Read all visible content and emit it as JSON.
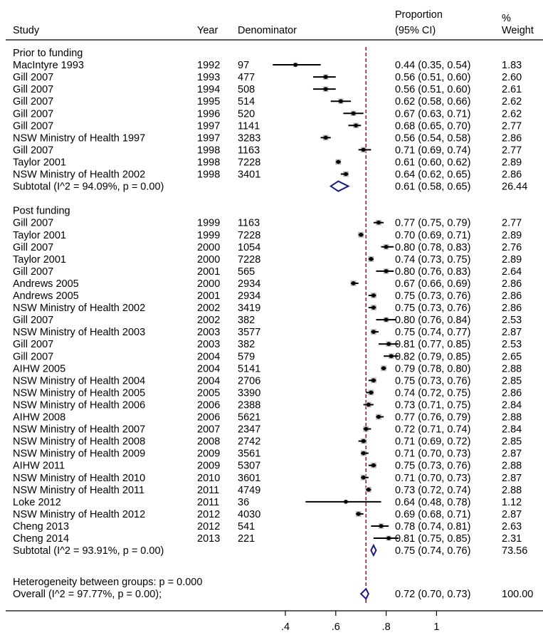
{
  "chart_data": {
    "type": "forest",
    "headers": {
      "study": "Study",
      "year": "Year",
      "denominator": "Denominator",
      "proportion_line1": "Proportion",
      "proportion_line2": "(95% CI)",
      "weight_line1": "%",
      "weight_line2": "Weight"
    },
    "groups": [
      {
        "label": "Prior to funding",
        "rows": [
          {
            "study": "MacIntyre 1993",
            "year": "1992",
            "denominator": "97",
            "prop": 0.44,
            "lo": 0.35,
            "hi": 0.54,
            "ci_text": "0.44 (0.35, 0.54)",
            "weight": 1.83,
            "weight_text": "1.83"
          },
          {
            "study": "Gill 2007",
            "year": "1993",
            "denominator": "477",
            "prop": 0.56,
            "lo": 0.51,
            "hi": 0.6,
            "ci_text": "0.56 (0.51, 0.60)",
            "weight": 2.6,
            "weight_text": "2.60"
          },
          {
            "study": "Gill 2007",
            "year": "1994",
            "denominator": "508",
            "prop": 0.56,
            "lo": 0.51,
            "hi": 0.6,
            "ci_text": "0.56 (0.51, 0.60)",
            "weight": 2.61,
            "weight_text": "2.61"
          },
          {
            "study": "Gill 2007",
            "year": "1995",
            "denominator": "514",
            "prop": 0.62,
            "lo": 0.58,
            "hi": 0.66,
            "ci_text": "0.62 (0.58, 0.66)",
            "weight": 2.62,
            "weight_text": "2.62"
          },
          {
            "study": "Gill 2007",
            "year": "1996",
            "denominator": "520",
            "prop": 0.67,
            "lo": 0.63,
            "hi": 0.71,
            "ci_text": "0.67 (0.63, 0.71)",
            "weight": 2.62,
            "weight_text": "2.62"
          },
          {
            "study": "Gill 2007",
            "year": "1997",
            "denominator": "1141",
            "prop": 0.68,
            "lo": 0.65,
            "hi": 0.7,
            "ci_text": "0.68 (0.65, 0.70)",
            "weight": 2.77,
            "weight_text": "2.77"
          },
          {
            "study": "NSW Ministry of Health 1997",
            "year": "1997",
            "denominator": "3283",
            "prop": 0.56,
            "lo": 0.54,
            "hi": 0.58,
            "ci_text": "0.56 (0.54, 0.58)",
            "weight": 2.86,
            "weight_text": "2.86"
          },
          {
            "study": "Gill 2007",
            "year": "1998",
            "denominator": "1163",
            "prop": 0.71,
            "lo": 0.69,
            "hi": 0.74,
            "ci_text": "0.71 (0.69, 0.74)",
            "weight": 2.77,
            "weight_text": "2.77"
          },
          {
            "study": "Taylor 2001",
            "year": "1998",
            "denominator": "7228",
            "prop": 0.61,
            "lo": 0.6,
            "hi": 0.62,
            "ci_text": "0.61 (0.60, 0.62)",
            "weight": 2.89,
            "weight_text": "2.89"
          },
          {
            "study": "NSW Ministry of Health 2002",
            "year": "1998",
            "denominator": "3401",
            "prop": 0.64,
            "lo": 0.62,
            "hi": 0.65,
            "ci_text": "0.64 (0.62, 0.65)",
            "weight": 2.86,
            "weight_text": "2.86"
          }
        ],
        "subtotal": {
          "label": "Subtotal  (I^2 = 94.09%, p = 0.00)",
          "prop": 0.61,
          "lo": 0.58,
          "hi": 0.65,
          "ci_text": "0.61 (0.58, 0.65)",
          "weight_text": "26.44"
        }
      },
      {
        "label": "Post funding",
        "rows": [
          {
            "study": "Gill 2007",
            "year": "1999",
            "denominator": "1163",
            "prop": 0.77,
            "lo": 0.75,
            "hi": 0.79,
            "ci_text": "0.77 (0.75, 0.79)",
            "weight": 2.77,
            "weight_text": "2.77"
          },
          {
            "study": "Taylor 2001",
            "year": "1999",
            "denominator": "7228",
            "prop": 0.7,
            "lo": 0.69,
            "hi": 0.71,
            "ci_text": "0.70 (0.69, 0.71)",
            "weight": 2.89,
            "weight_text": "2.89"
          },
          {
            "study": "Gill 2007",
            "year": "2000",
            "denominator": "1054",
            "prop": 0.8,
            "lo": 0.78,
            "hi": 0.83,
            "ci_text": "0.80 (0.78, 0.83)",
            "weight": 2.76,
            "weight_text": "2.76"
          },
          {
            "study": "Taylor 2001",
            "year": "2000",
            "denominator": "7228",
            "prop": 0.74,
            "lo": 0.73,
            "hi": 0.75,
            "ci_text": "0.74 (0.73, 0.75)",
            "weight": 2.89,
            "weight_text": "2.89"
          },
          {
            "study": "Gill 2007",
            "year": "2001",
            "denominator": "565",
            "prop": 0.8,
            "lo": 0.76,
            "hi": 0.83,
            "ci_text": "0.80 (0.76, 0.83)",
            "weight": 2.64,
            "weight_text": "2.64"
          },
          {
            "study": "Andrews 2005",
            "year": "2000",
            "denominator": "2934",
            "prop": 0.67,
            "lo": 0.66,
            "hi": 0.69,
            "ci_text": "0.67 (0.66, 0.69)",
            "weight": 2.86,
            "weight_text": "2.86"
          },
          {
            "study": "Andrews 2005",
            "year": "2001",
            "denominator": "2934",
            "prop": 0.75,
            "lo": 0.73,
            "hi": 0.76,
            "ci_text": "0.75 (0.73, 0.76)",
            "weight": 2.86,
            "weight_text": "2.86"
          },
          {
            "study": "NSW Ministry of Health 2002",
            "year": "2002",
            "denominator": "3419",
            "prop": 0.75,
            "lo": 0.73,
            "hi": 0.76,
            "ci_text": "0.75 (0.73, 0.76)",
            "weight": 2.86,
            "weight_text": "2.86"
          },
          {
            "study": "Gill 2007",
            "year": "2002",
            "denominator": "382",
            "prop": 0.8,
            "lo": 0.76,
            "hi": 0.84,
            "ci_text": "0.80 (0.76, 0.84)",
            "weight": 2.53,
            "weight_text": "2.53"
          },
          {
            "study": "NSW Ministry of Health 2003",
            "year": "2003",
            "denominator": "3577",
            "prop": 0.75,
            "lo": 0.74,
            "hi": 0.77,
            "ci_text": "0.75 (0.74, 0.77)",
            "weight": 2.87,
            "weight_text": "2.87"
          },
          {
            "study": "Gill 2007",
            "year": "2003",
            "denominator": "382",
            "prop": 0.81,
            "lo": 0.77,
            "hi": 0.85,
            "ci_text": "0.81 (0.77, 0.85)",
            "weight": 2.53,
            "weight_text": "2.53"
          },
          {
            "study": "Gill 2007",
            "year": "2004",
            "denominator": "579",
            "prop": 0.82,
            "lo": 0.79,
            "hi": 0.85,
            "ci_text": "0.82 (0.79, 0.85)",
            "weight": 2.65,
            "weight_text": "2.65"
          },
          {
            "study": "AIHW 2005",
            "year": "2004",
            "denominator": "5141",
            "prop": 0.79,
            "lo": 0.78,
            "hi": 0.8,
            "ci_text": "0.79 (0.78, 0.80)",
            "weight": 2.88,
            "weight_text": "2.88"
          },
          {
            "study": "NSW Ministry of Health 2004",
            "year": "2004",
            "denominator": "2706",
            "prop": 0.75,
            "lo": 0.73,
            "hi": 0.76,
            "ci_text": "0.75 (0.73, 0.76)",
            "weight": 2.85,
            "weight_text": "2.85"
          },
          {
            "study": "NSW Ministry of Health 2005",
            "year": "2005",
            "denominator": "3390",
            "prop": 0.74,
            "lo": 0.72,
            "hi": 0.75,
            "ci_text": "0.74 (0.72, 0.75)",
            "weight": 2.86,
            "weight_text": "2.86"
          },
          {
            "study": "NSW Ministry of Health 2006",
            "year": "2006",
            "denominator": "2388",
            "prop": 0.73,
            "lo": 0.71,
            "hi": 0.75,
            "ci_text": "0.73 (0.71, 0.75)",
            "weight": 2.84,
            "weight_text": "2.84"
          },
          {
            "study": "AIHW 2008",
            "year": "2006",
            "denominator": "5621",
            "prop": 0.77,
            "lo": 0.76,
            "hi": 0.79,
            "ci_text": "0.77 (0.76, 0.79)",
            "weight": 2.88,
            "weight_text": "2.88"
          },
          {
            "study": "NSW Ministry of Health 2007",
            "year": "2007",
            "denominator": "2347",
            "prop": 0.72,
            "lo": 0.71,
            "hi": 0.74,
            "ci_text": "0.72 (0.71, 0.74)",
            "weight": 2.84,
            "weight_text": "2.84"
          },
          {
            "study": "NSW Ministry of Health 2008",
            "year": "2008",
            "denominator": "2742",
            "prop": 0.71,
            "lo": 0.69,
            "hi": 0.72,
            "ci_text": "0.71 (0.69, 0.72)",
            "weight": 2.85,
            "weight_text": "2.85"
          },
          {
            "study": "NSW Ministry of Health 2009",
            "year": "2009",
            "denominator": "3561",
            "prop": 0.71,
            "lo": 0.7,
            "hi": 0.73,
            "ci_text": "0.71 (0.70, 0.73)",
            "weight": 2.87,
            "weight_text": "2.87"
          },
          {
            "study": "AIHW 2011",
            "year": "2009",
            "denominator": "5307",
            "prop": 0.75,
            "lo": 0.73,
            "hi": 0.76,
            "ci_text": "0.75 (0.73, 0.76)",
            "weight": 2.88,
            "weight_text": "2.88"
          },
          {
            "study": "NSW Ministry of Health 2010",
            "year": "2010",
            "denominator": "3601",
            "prop": 0.71,
            "lo": 0.7,
            "hi": 0.73,
            "ci_text": "0.71 (0.70, 0.73)",
            "weight": 2.87,
            "weight_text": "2.87"
          },
          {
            "study": "NSW Ministry of Health 2011",
            "year": "2011",
            "denominator": "4749",
            "prop": 0.73,
            "lo": 0.72,
            "hi": 0.74,
            "ci_text": "0.73 (0.72, 0.74)",
            "weight": 2.88,
            "weight_text": "2.88"
          },
          {
            "study": "Loke 2012",
            "year": "2011",
            "denominator": "36",
            "prop": 0.64,
            "lo": 0.48,
            "hi": 0.78,
            "ci_text": "0.64 (0.48, 0.78)",
            "weight": 1.12,
            "weight_text": "1.12"
          },
          {
            "study": "NSW Ministry of Health 2012",
            "year": "2012",
            "denominator": "4030",
            "prop": 0.69,
            "lo": 0.68,
            "hi": 0.71,
            "ci_text": "0.69 (0.68, 0.71)",
            "weight": 2.87,
            "weight_text": "2.87"
          },
          {
            "study": "Cheng 2013",
            "year": "2012",
            "denominator": "541",
            "prop": 0.78,
            "lo": 0.74,
            "hi": 0.81,
            "ci_text": "0.78 (0.74, 0.81)",
            "weight": 2.63,
            "weight_text": "2.63"
          },
          {
            "study": "Cheng 2014",
            "year": "2013",
            "denominator": "221",
            "prop": 0.81,
            "lo": 0.75,
            "hi": 0.85,
            "ci_text": "0.81 (0.75, 0.85)",
            "weight": 2.31,
            "weight_text": "2.31"
          }
        ],
        "subtotal": {
          "label": "Subtotal  (I^2 = 93.91%, p = 0.00)",
          "prop": 0.75,
          "lo": 0.74,
          "hi": 0.76,
          "ci_text": "0.75 (0.74, 0.76)",
          "weight_text": "73.56"
        }
      }
    ],
    "heterogeneity_text": "Heterogeneity between groups: p = 0.000",
    "overall": {
      "label": "Overall  (I^2 = 97.77%, p = 0.00);",
      "prop": 0.72,
      "lo": 0.7,
      "hi": 0.73,
      "ci_text": "0.72 (0.70, 0.73)",
      "weight_text": "100.00"
    },
    "xaxis": {
      "ticks": [
        0.4,
        0.6,
        0.8,
        1.0
      ],
      "tick_labels": [
        ".4",
        ".6",
        ".8",
        "1"
      ],
      "range": [
        0.35,
        1.0
      ]
    },
    "reference_line": 0.72,
    "colors": {
      "box": "#b5b5b5",
      "point": "#000000",
      "ci": "#000000",
      "diamond": "#1a1a80",
      "refline": "#8b1a2b",
      "text": "#000000"
    }
  }
}
